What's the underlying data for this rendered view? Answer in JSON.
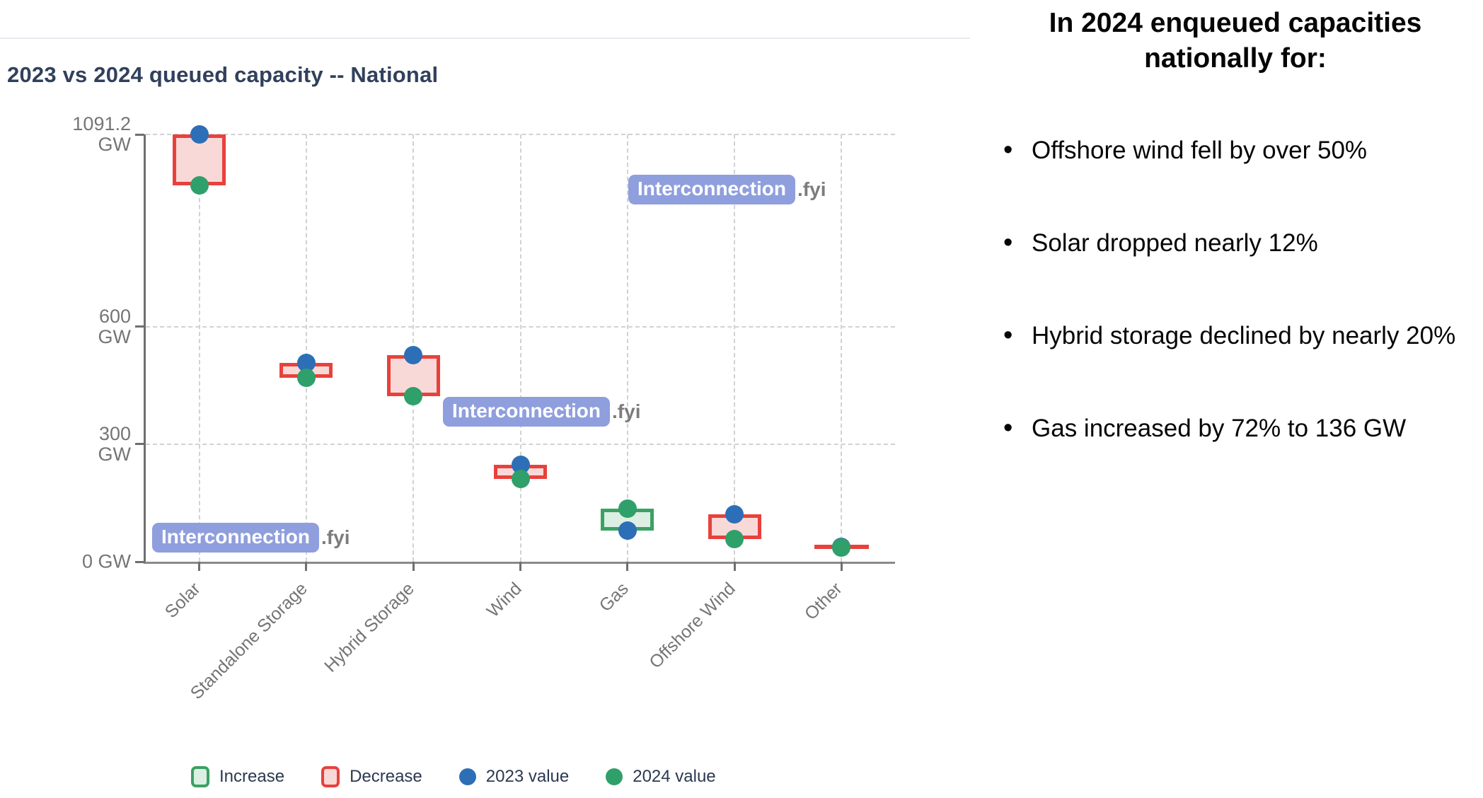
{
  "chart_data": {
    "type": "dumbbell-change",
    "title": "2023 vs 2024 queued capacity -- National",
    "unit": "GW",
    "categories": [
      "Solar",
      "Standalone Storage",
      "Hybrid Storage",
      "Wind",
      "Gas",
      "Offshore Wind",
      "Other"
    ],
    "series": [
      {
        "name": "2023 value",
        "values": [
          1091.2,
          507,
          527,
          247,
          79,
          121,
          38
        ]
      },
      {
        "name": "2024 value",
        "values": [
          962,
          469,
          423,
          211,
          136,
          58,
          37
        ]
      }
    ],
    "ylim": [
      0,
      1091.2
    ],
    "yticks": [
      {
        "value": 1091.2,
        "lines": [
          "1091.2",
          "GW"
        ]
      },
      {
        "value": 600,
        "lines": [
          "600",
          "GW"
        ]
      },
      {
        "value": 300,
        "lines": [
          "300",
          "GW"
        ]
      },
      {
        "value": 0,
        "lines": [
          "0 GW"
        ]
      }
    ],
    "grid": "dashed",
    "legend_position": "bottom"
  },
  "legend": [
    {
      "label": "Increase",
      "type": "increase-box"
    },
    {
      "label": "Decrease",
      "type": "decrease-box"
    },
    {
      "label": "2023 value",
      "type": "dot-2023"
    },
    {
      "label": "2024 value",
      "type": "dot-2024"
    }
  ],
  "watermark": {
    "brand": "Interconnection",
    "suffix": ".fyi"
  },
  "notes": {
    "heading": "In 2024 enqueued capacities nationally for:",
    "bullets": [
      "Offshore wind fell by over 50%",
      "Solar dropped nearly 12%",
      "Hybrid storage declined by nearly 20%",
      "Gas increased by 72% to 136 GW"
    ]
  },
  "colors": {
    "increase_border": "#3aa262",
    "increase_fill": "#ddefe2",
    "decrease_border": "#e8413c",
    "decrease_fill": "#f9d9d8",
    "dot_2023": "#2d6fb7",
    "dot_2024": "#2fa06a",
    "title_text": "#31405c",
    "axis": "#6f6f6f",
    "gridline": "#d2d2d2",
    "watermark_bg": "#8f9edd",
    "watermark_suffix": "#7c7c7c"
  }
}
